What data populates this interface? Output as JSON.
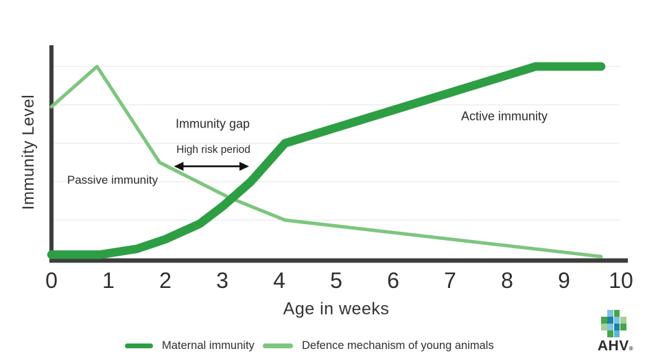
{
  "colors": {
    "dark_green": "#2e9e44",
    "light_green": "#7ec57f",
    "axis": "#3d3d3d",
    "grid": "#ededed",
    "arrow": "#111111"
  },
  "y_axis_label": "Immunity Level",
  "x_axis_label": "Age in weeks",
  "annotations": {
    "passive": "Passive immunity",
    "immunity_gap": "Immunity gap",
    "high_risk": "High risk period",
    "active": "Active immunity"
  },
  "legend": {
    "items": [
      {
        "label": "Maternal immunity",
        "color": "#2e9e44"
      },
      {
        "label": "Defence mechanism of young animals",
        "color": "#7ec57f"
      }
    ]
  },
  "logo": {
    "text": "AHV",
    "registered": "®",
    "palette": {
      "b": "#7cc4e0",
      "g": "#47a447",
      "t": "#1f80a8",
      "lg": "#a6d097",
      "c": "#59b8d4"
    },
    "cells": [
      [
        0,
        1,
        "b"
      ],
      [
        0,
        2,
        "g"
      ],
      [
        1,
        0,
        "g"
      ],
      [
        1,
        1,
        "t"
      ],
      [
        1,
        2,
        "b"
      ],
      [
        1,
        3,
        "lg"
      ],
      [
        2,
        0,
        "lg"
      ],
      [
        2,
        1,
        "b"
      ],
      [
        2,
        2,
        "t"
      ],
      [
        2,
        3,
        "g"
      ],
      [
        3,
        1,
        "g"
      ],
      [
        3,
        2,
        "c"
      ]
    ]
  },
  "chart_data": {
    "type": "line",
    "title": "",
    "xlabel": "Age in weeks",
    "ylabel": "Immunity Level",
    "x_ticks": [
      "0",
      "1",
      "2",
      "3",
      "4",
      "5",
      "6",
      "7",
      "8",
      "9",
      "10"
    ],
    "xlim": [
      0,
      10
    ],
    "ylim": [
      0,
      105
    ],
    "grid": "horizontal gridlines only",
    "grid_levels": [
      20,
      40,
      60,
      80,
      100
    ],
    "legend_position": "bottom",
    "series": [
      {
        "name": "Maternal immunity",
        "color": "#2e9e44",
        "width": 12.5,
        "points": [
          [
            0,
            2
          ],
          [
            0.85,
            2
          ],
          [
            1.5,
            5
          ],
          [
            2,
            10
          ],
          [
            2.6,
            18
          ],
          [
            3,
            27
          ],
          [
            3.5,
            40
          ],
          [
            4.1,
            60
          ],
          [
            8.5,
            100
          ],
          [
            9.65,
            100
          ]
        ]
      },
      {
        "name": "Defence mechanism of young animals",
        "color": "#7ec57f",
        "width": 5,
        "points": [
          [
            0,
            79
          ],
          [
            0.8,
            100
          ],
          [
            1.9,
            50
          ],
          [
            3.1,
            32
          ],
          [
            4.1,
            20
          ],
          [
            9.65,
            1
          ]
        ]
      }
    ],
    "high_risk_arrow": {
      "from_week": 2.15,
      "to_week": 3.47,
      "level": 48
    }
  }
}
